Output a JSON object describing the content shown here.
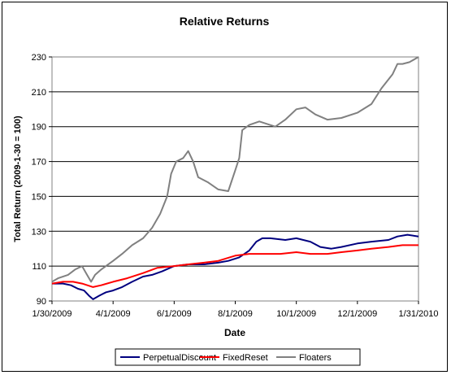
{
  "chart_data": {
    "type": "line",
    "title": "Relative Returns",
    "xlabel": "Date",
    "ylabel": "Total Return (2009-1-30 = 100)",
    "x_range": [
      "2009-01-30",
      "2010-01-31"
    ],
    "ylim": [
      90,
      230
    ],
    "y_ticks": [
      90,
      110,
      130,
      150,
      170,
      190,
      210,
      230
    ],
    "x_ticks": [
      {
        "date": "2009-01-30",
        "label": "1/30/2009"
      },
      {
        "date": "2009-04-01",
        "label": "4/1/2009"
      },
      {
        "date": "2009-06-01",
        "label": "6/1/2009"
      },
      {
        "date": "2009-08-01",
        "label": "8/1/2009"
      },
      {
        "date": "2009-10-01",
        "label": "10/1/2009"
      },
      {
        "date": "2009-12-01",
        "label": "12/1/2009"
      },
      {
        "date": "2010-01-31",
        "label": "1/31/2010"
      }
    ],
    "grid": "horizontal",
    "legend_position": "bottom",
    "series": [
      {
        "name": "PerpetualDiscount",
        "color": "#00007f",
        "points": [
          [
            "2009-01-30",
            100
          ],
          [
            "2009-02-10",
            100
          ],
          [
            "2009-02-18",
            99
          ],
          [
            "2009-02-25",
            97
          ],
          [
            "2009-03-03",
            96
          ],
          [
            "2009-03-08",
            93
          ],
          [
            "2009-03-12",
            91
          ],
          [
            "2009-03-18",
            93
          ],
          [
            "2009-03-25",
            95
          ],
          [
            "2009-04-01",
            96
          ],
          [
            "2009-04-10",
            98
          ],
          [
            "2009-04-20",
            101
          ],
          [
            "2009-05-01",
            104
          ],
          [
            "2009-05-10",
            105
          ],
          [
            "2009-05-20",
            107
          ],
          [
            "2009-06-01",
            110
          ],
          [
            "2009-06-15",
            111
          ],
          [
            "2009-07-01",
            111
          ],
          [
            "2009-07-15",
            112
          ],
          [
            "2009-07-25",
            113
          ],
          [
            "2009-08-05",
            115
          ],
          [
            "2009-08-15",
            119
          ],
          [
            "2009-08-22",
            124
          ],
          [
            "2009-08-28",
            126
          ],
          [
            "2009-09-05",
            126
          ],
          [
            "2009-09-20",
            125
          ],
          [
            "2009-10-01",
            126
          ],
          [
            "2009-10-15",
            124
          ],
          [
            "2009-10-25",
            121
          ],
          [
            "2009-11-05",
            120
          ],
          [
            "2009-11-15",
            121
          ],
          [
            "2009-12-01",
            123
          ],
          [
            "2009-12-15",
            124
          ],
          [
            "2010-01-01",
            125
          ],
          [
            "2010-01-10",
            127
          ],
          [
            "2010-01-20",
            128
          ],
          [
            "2010-01-31",
            127
          ]
        ]
      },
      {
        "name": "FixedReset",
        "color": "#ff0000",
        "points": [
          [
            "2009-01-30",
            100
          ],
          [
            "2009-02-10",
            101
          ],
          [
            "2009-02-20",
            101
          ],
          [
            "2009-03-01",
            100
          ],
          [
            "2009-03-12",
            98
          ],
          [
            "2009-03-20",
            99
          ],
          [
            "2009-04-01",
            101
          ],
          [
            "2009-04-15",
            103
          ],
          [
            "2009-05-01",
            106
          ],
          [
            "2009-05-15",
            109
          ],
          [
            "2009-06-01",
            110
          ],
          [
            "2009-06-15",
            111
          ],
          [
            "2009-07-01",
            112
          ],
          [
            "2009-07-15",
            113
          ],
          [
            "2009-08-01",
            116
          ],
          [
            "2009-08-15",
            117
          ],
          [
            "2009-09-01",
            117
          ],
          [
            "2009-09-15",
            117
          ],
          [
            "2009-10-01",
            118
          ],
          [
            "2009-10-15",
            117
          ],
          [
            "2009-11-01",
            117
          ],
          [
            "2009-11-15",
            118
          ],
          [
            "2009-12-01",
            119
          ],
          [
            "2009-12-15",
            120
          ],
          [
            "2010-01-01",
            121
          ],
          [
            "2010-01-15",
            122
          ],
          [
            "2010-01-31",
            122
          ]
        ]
      },
      {
        "name": "Floaters",
        "color": "#808080",
        "points": [
          [
            "2009-01-30",
            101
          ],
          [
            "2009-02-05",
            103
          ],
          [
            "2009-02-15",
            105
          ],
          [
            "2009-02-22",
            108
          ],
          [
            "2009-03-01",
            110
          ],
          [
            "2009-03-05",
            106
          ],
          [
            "2009-03-10",
            101
          ],
          [
            "2009-03-14",
            105
          ],
          [
            "2009-03-20",
            108
          ],
          [
            "2009-04-01",
            113
          ],
          [
            "2009-04-10",
            117
          ],
          [
            "2009-04-20",
            122
          ],
          [
            "2009-05-01",
            126
          ],
          [
            "2009-05-10",
            132
          ],
          [
            "2009-05-18",
            140
          ],
          [
            "2009-05-25",
            150
          ],
          [
            "2009-05-29",
            163
          ],
          [
            "2009-06-03",
            170
          ],
          [
            "2009-06-10",
            172
          ],
          [
            "2009-06-15",
            176
          ],
          [
            "2009-06-20",
            170
          ],
          [
            "2009-06-25",
            161
          ],
          [
            "2009-07-05",
            158
          ],
          [
            "2009-07-15",
            154
          ],
          [
            "2009-07-25",
            153
          ],
          [
            "2009-08-01",
            165
          ],
          [
            "2009-08-05",
            172
          ],
          [
            "2009-08-08",
            188
          ],
          [
            "2009-08-15",
            191
          ],
          [
            "2009-08-25",
            193
          ],
          [
            "2009-09-10",
            190
          ],
          [
            "2009-09-20",
            194
          ],
          [
            "2009-10-01",
            200
          ],
          [
            "2009-10-10",
            201
          ],
          [
            "2009-10-20",
            197
          ],
          [
            "2009-11-01",
            194
          ],
          [
            "2009-11-15",
            195
          ],
          [
            "2009-12-01",
            198
          ],
          [
            "2009-12-15",
            203
          ],
          [
            "2009-12-25",
            212
          ],
          [
            "2010-01-05",
            220
          ],
          [
            "2010-01-10",
            226
          ],
          [
            "2010-01-15",
            226
          ],
          [
            "2010-01-22",
            227
          ],
          [
            "2010-01-31",
            230
          ]
        ]
      }
    ]
  }
}
